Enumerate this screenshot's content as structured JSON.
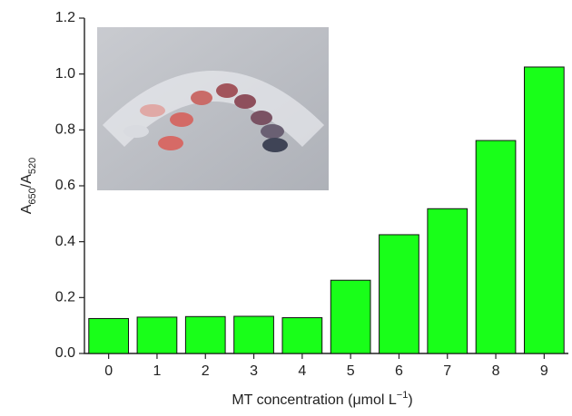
{
  "chart_data": {
    "type": "bar",
    "xlabel": [
      "MT concentration (μmol L",
      "−1",
      ")"
    ],
    "ylabel": [
      "A",
      "650",
      "/A",
      "520"
    ],
    "categories": [
      "0",
      "1",
      "2",
      "3",
      "4",
      "5",
      "6",
      "7",
      "8",
      "9"
    ],
    "values": [
      0.125,
      0.13,
      0.132,
      0.133,
      0.128,
      0.262,
      0.425,
      0.518,
      0.762,
      1.025
    ],
    "color": "#19ff19",
    "ylim": [
      0,
      1.2
    ],
    "yticks": [
      {
        "value": 0,
        "label": "0.0"
      },
      {
        "value": 0.2,
        "label": "0.2"
      },
      {
        "value": 0.4,
        "label": "0.4"
      },
      {
        "value": 0.6,
        "label": "0.6"
      },
      {
        "value": 0.8,
        "label": "0.8"
      },
      {
        "value": 1.0,
        "label": "1.0"
      },
      {
        "value": 1.2,
        "label": "1.2"
      }
    ],
    "grid": false
  }
}
